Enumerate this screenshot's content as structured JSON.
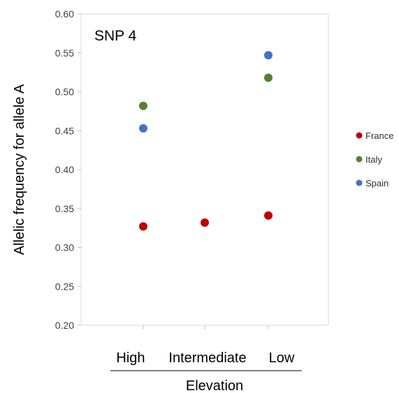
{
  "chart_data": {
    "type": "scatter",
    "title": "SNP 4",
    "xlabel": "Elevation",
    "ylabel": "Allelic frequency for allele A",
    "categories": [
      "High",
      "Intermediate",
      "Low"
    ],
    "ylim": [
      0.2,
      0.6
    ],
    "yticks": [
      "0.20",
      "0.25",
      "0.30",
      "0.35",
      "0.40",
      "0.45",
      "0.50",
      "0.55",
      "0.60"
    ],
    "grid": false,
    "legend_position": "right",
    "series": [
      {
        "name": "France",
        "color": "#c00000",
        "values": [
          0.327,
          0.332,
          0.341
        ]
      },
      {
        "name": "Italy",
        "color": "#548235",
        "values": [
          0.482,
          null,
          0.518
        ]
      },
      {
        "name": "Spain",
        "color": "#4472c4",
        "values": [
          0.453,
          null,
          0.547
        ]
      }
    ]
  }
}
